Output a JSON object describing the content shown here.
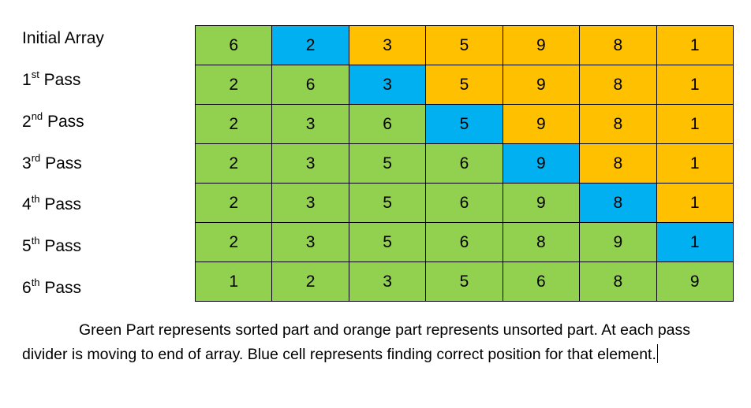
{
  "rows": [
    {
      "label": {
        "base": "Initial Array",
        "sup": "",
        "rest": ""
      },
      "cells": [
        {
          "v": "6",
          "c": "green"
        },
        {
          "v": "2",
          "c": "blue"
        },
        {
          "v": "3",
          "c": "orange"
        },
        {
          "v": "5",
          "c": "orange"
        },
        {
          "v": "9",
          "c": "orange"
        },
        {
          "v": "8",
          "c": "orange"
        },
        {
          "v": "1",
          "c": "orange"
        }
      ]
    },
    {
      "label": {
        "base": "1",
        "sup": "st",
        "rest": " Pass"
      },
      "cells": [
        {
          "v": "2",
          "c": "green"
        },
        {
          "v": "6",
          "c": "green"
        },
        {
          "v": "3",
          "c": "blue"
        },
        {
          "v": "5",
          "c": "orange"
        },
        {
          "v": "9",
          "c": "orange"
        },
        {
          "v": "8",
          "c": "orange"
        },
        {
          "v": "1",
          "c": "orange"
        }
      ]
    },
    {
      "label": {
        "base": "2",
        "sup": "nd",
        "rest": " Pass"
      },
      "cells": [
        {
          "v": "2",
          "c": "green"
        },
        {
          "v": "3",
          "c": "green"
        },
        {
          "v": "6",
          "c": "green"
        },
        {
          "v": "5",
          "c": "blue"
        },
        {
          "v": "9",
          "c": "orange"
        },
        {
          "v": "8",
          "c": "orange"
        },
        {
          "v": "1",
          "c": "orange"
        }
      ]
    },
    {
      "label": {
        "base": "3",
        "sup": "rd",
        "rest": " Pass"
      },
      "cells": [
        {
          "v": "2",
          "c": "green"
        },
        {
          "v": "3",
          "c": "green"
        },
        {
          "v": "5",
          "c": "green"
        },
        {
          "v": "6",
          "c": "green"
        },
        {
          "v": "9",
          "c": "blue"
        },
        {
          "v": "8",
          "c": "orange"
        },
        {
          "v": "1",
          "c": "orange"
        }
      ]
    },
    {
      "label": {
        "base": "4",
        "sup": "th",
        "rest": " Pass"
      },
      "cells": [
        {
          "v": "2",
          "c": "green"
        },
        {
          "v": "3",
          "c": "green"
        },
        {
          "v": "5",
          "c": "green"
        },
        {
          "v": "6",
          "c": "green"
        },
        {
          "v": "9",
          "c": "green"
        },
        {
          "v": "8",
          "c": "blue"
        },
        {
          "v": "1",
          "c": "orange"
        }
      ]
    },
    {
      "label": {
        "base": "5",
        "sup": "th",
        "rest": " Pass"
      },
      "cells": [
        {
          "v": "2",
          "c": "green"
        },
        {
          "v": "3",
          "c": "green"
        },
        {
          "v": "5",
          "c": "green"
        },
        {
          "v": "6",
          "c": "green"
        },
        {
          "v": "8",
          "c": "green"
        },
        {
          "v": "9",
          "c": "green"
        },
        {
          "v": "1",
          "c": "blue"
        }
      ]
    },
    {
      "label": {
        "base": "6",
        "sup": "th",
        "rest": " Pass"
      },
      "cells": [
        {
          "v": "1",
          "c": "green"
        },
        {
          "v": "2",
          "c": "green"
        },
        {
          "v": "3",
          "c": "green"
        },
        {
          "v": "5",
          "c": "green"
        },
        {
          "v": "6",
          "c": "green"
        },
        {
          "v": "8",
          "c": "green"
        },
        {
          "v": "9",
          "c": "green"
        }
      ]
    }
  ],
  "caption": "Green Part represents sorted part and orange part represents unsorted part. At each pass divider is moving to end of array. Blue cell represents finding correct position for that element.",
  "colors": {
    "green": "#92d050",
    "blue": "#00b0f0",
    "orange": "#ffc000"
  }
}
